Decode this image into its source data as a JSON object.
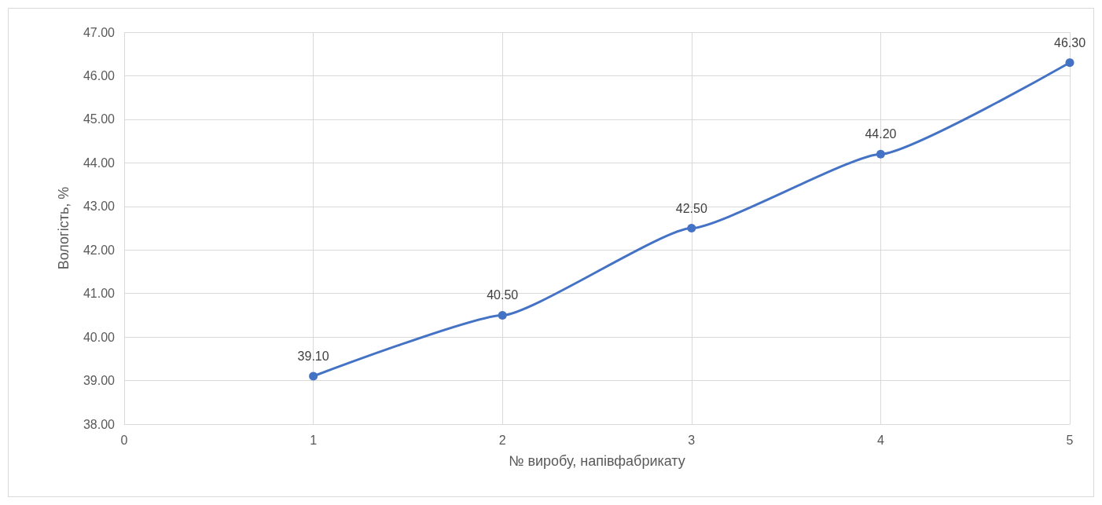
{
  "chart_data": {
    "type": "line",
    "xlabel": "№ виробу, напівфабрикату",
    "ylabel": "Вологість, %",
    "x": [
      1,
      2,
      3,
      4,
      5
    ],
    "values": [
      39.1,
      40.5,
      42.5,
      44.2,
      46.3
    ],
    "value_labels": [
      "39.10",
      "40.50",
      "42.50",
      "44.20",
      "46.30"
    ],
    "color": "#4472c4",
    "xlim": [
      0,
      5
    ],
    "xticks": [
      0,
      1,
      2,
      3,
      4,
      5
    ],
    "ylim": [
      38,
      47
    ],
    "yticks": [
      {
        "value": 38,
        "label": "38.00"
      },
      {
        "value": 39,
        "label": "39.00"
      },
      {
        "value": 40,
        "label": "40.00"
      },
      {
        "value": 41,
        "label": "41.00"
      },
      {
        "value": 42,
        "label": "42.00"
      },
      {
        "value": 43,
        "label": "43.00"
      },
      {
        "value": 44,
        "label": "44.00"
      },
      {
        "value": 45,
        "label": "45.00"
      },
      {
        "value": 46,
        "label": "46.00"
      },
      {
        "value": 47,
        "label": "47.00"
      }
    ],
    "grid": true,
    "marker": "circle",
    "line_style": "solid"
  }
}
